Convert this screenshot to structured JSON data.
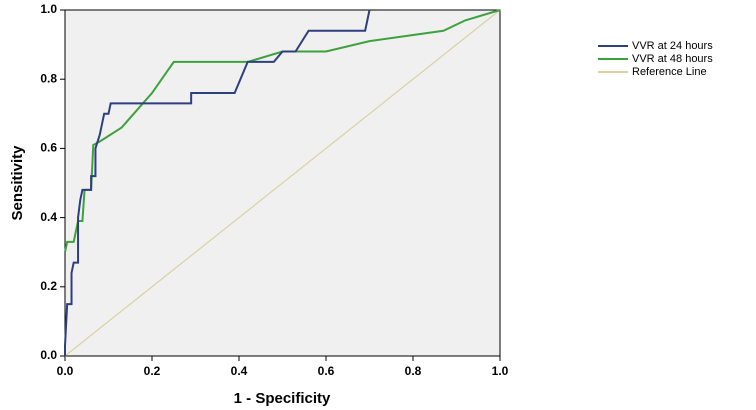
{
  "chart_data": {
    "type": "line",
    "x_label": "1 - Specificity",
    "y_label": "Sensitivity",
    "xlim": [
      0,
      1
    ],
    "ylim": [
      0,
      1
    ],
    "xticks": [
      {
        "value": 0,
        "label": "0.0"
      },
      0.2,
      0.4,
      0.6,
      0.8,
      {
        "value": 1,
        "label": "1.0"
      }
    ],
    "yticks": [
      {
        "value": 0,
        "label": "0.0"
      },
      0.2,
      0.4,
      0.6,
      0.8,
      {
        "value": 1,
        "label": "1.0"
      }
    ],
    "series": [
      {
        "name": "VVR at 24 hours",
        "color": "#2e3f7f",
        "x": [
          0,
          0,
          0.005,
          0.015,
          0.015,
          0.02,
          0.03,
          0.03,
          0.035,
          0.04,
          0.06,
          0.06,
          0.07,
          0.07,
          0.08,
          0.085,
          0.09,
          0.1,
          0.105,
          0.29,
          0.29,
          0.39,
          0.4,
          0.42,
          0.48,
          0.5,
          0.53,
          0.56,
          0.69,
          0.7
        ],
        "values": [
          0,
          0.03,
          0.15,
          0.15,
          0.24,
          0.27,
          0.27,
          0.4,
          0.45,
          0.48,
          0.48,
          0.52,
          0.52,
          0.6,
          0.64,
          0.67,
          0.7,
          0.7,
          0.73,
          0.73,
          0.76,
          0.76,
          0.79,
          0.85,
          0.85,
          0.88,
          0.88,
          0.94,
          0.94,
          1
        ]
      },
      {
        "name": "VVR at 48 hours",
        "color": "#3da13d",
        "x": [
          0,
          0.005,
          0.02,
          0.03,
          0.04,
          0.045,
          0.06,
          0.065,
          0.08,
          0.13,
          0.2,
          0.25,
          0.42,
          0.5,
          0.6,
          0.7,
          0.87,
          0.92,
          1
        ],
        "values": [
          0.3,
          0.33,
          0.33,
          0.39,
          0.39,
          0.48,
          0.48,
          0.61,
          0.62,
          0.66,
          0.76,
          0.85,
          0.85,
          0.88,
          0.88,
          0.91,
          0.94,
          0.97,
          1
        ]
      },
      {
        "name": "Reference Line",
        "color": "#d8d3a0",
        "x": [
          0,
          1
        ],
        "values": [
          0,
          1
        ]
      }
    ]
  }
}
